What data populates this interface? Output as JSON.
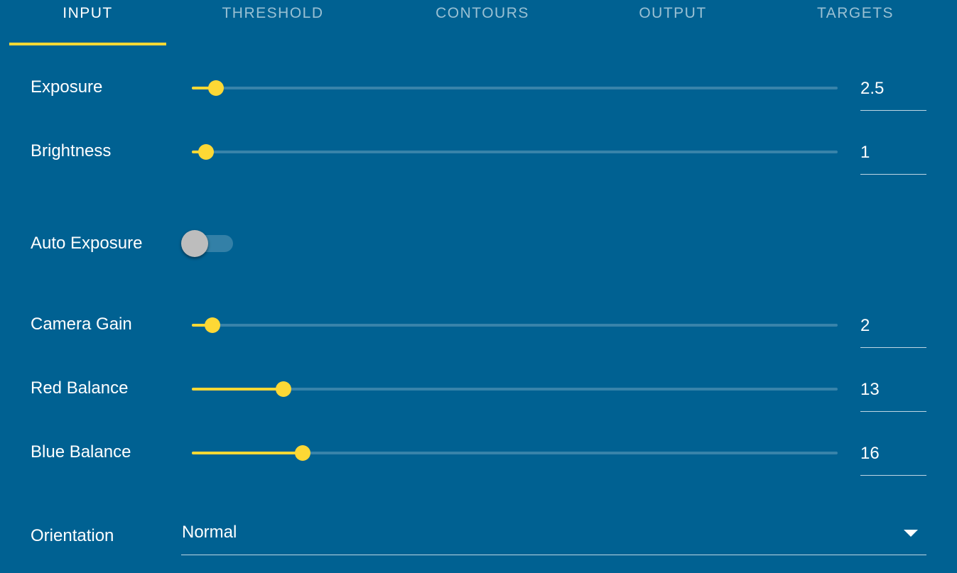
{
  "tabs": [
    {
      "label": "INPUT",
      "active": true
    },
    {
      "label": "THRESHOLD",
      "active": false
    },
    {
      "label": "CONTOURS",
      "active": false
    },
    {
      "label": "OUTPUT",
      "active": false
    },
    {
      "label": "TARGETS",
      "active": false
    }
  ],
  "accent_color": "#fdd835",
  "background_color": "#006192",
  "sliders": {
    "exposure": {
      "label": "Exposure",
      "value": "2.5",
      "fill_fraction": 0.025
    },
    "brightness": {
      "label": "Brightness",
      "value": "1",
      "fill_fraction": 0.01
    },
    "camera_gain": {
      "label": "Camera Gain",
      "value": "2",
      "fill_fraction": 0.02
    },
    "red_balance": {
      "label": "Red Balance",
      "value": "13",
      "fill_fraction": 0.13
    },
    "blue_balance": {
      "label": "Blue Balance",
      "value": "16",
      "fill_fraction": 0.16
    }
  },
  "auto_exposure": {
    "label": "Auto Exposure",
    "enabled": false
  },
  "orientation": {
    "label": "Orientation",
    "value": "Normal"
  }
}
